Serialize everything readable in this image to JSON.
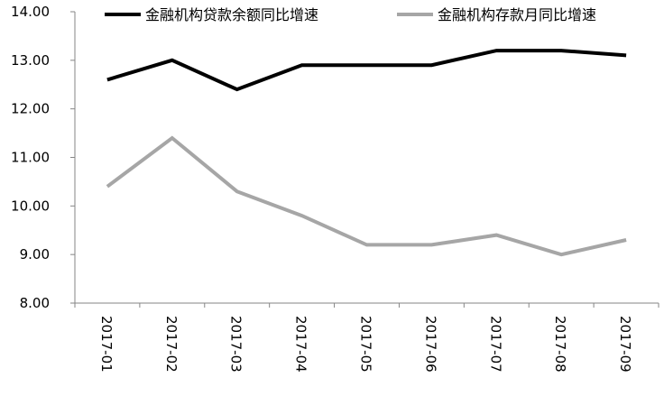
{
  "chart_data": {
    "type": "line",
    "categories": [
      "2017-01",
      "2017-02",
      "2017-03",
      "2017-04",
      "2017-05",
      "2017-06",
      "2017-07",
      "2017-08",
      "2017-09"
    ],
    "series": [
      {
        "name": "金融机构贷款余额同比增速",
        "color": "#000000",
        "values": [
          12.6,
          13.0,
          12.4,
          12.9,
          12.9,
          12.9,
          13.2,
          13.2,
          13.1
        ]
      },
      {
        "name": "金融机构存款月同比增速",
        "color": "#a6a6a6",
        "values": [
          10.4,
          11.4,
          10.3,
          9.8,
          9.2,
          9.2,
          9.4,
          9.0,
          9.3
        ]
      }
    ],
    "ylim": [
      8.0,
      14.0
    ],
    "yticks": [
      "8.00",
      "9.00",
      "10.00",
      "11.00",
      "12.00",
      "13.00",
      "14.00"
    ],
    "grid": false,
    "legend_position": "top"
  }
}
